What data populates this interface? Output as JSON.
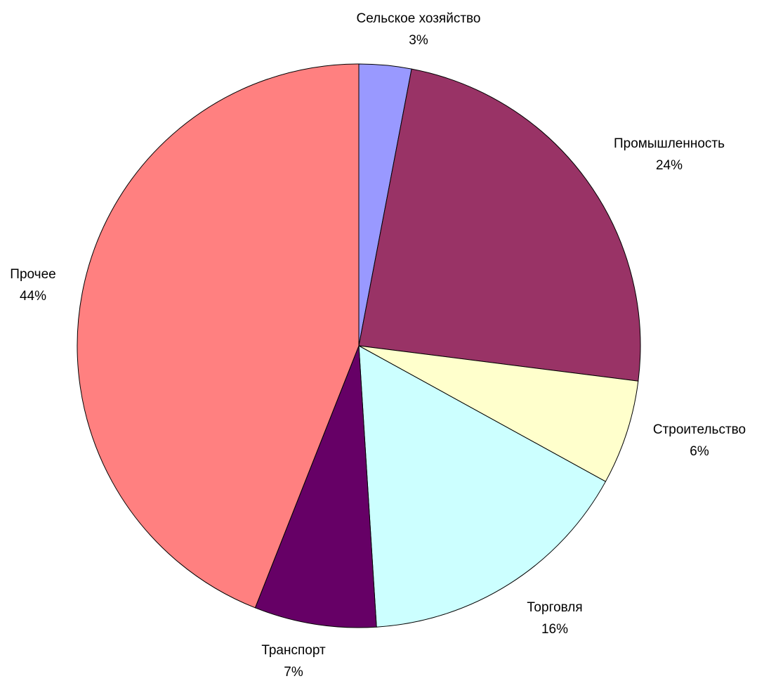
{
  "chart_data": {
    "type": "pie",
    "start_angle_deg": 0,
    "direction": "clockwise",
    "slices": [
      {
        "label": "Сельское хозяйство",
        "value": 3,
        "percent_label": "3%",
        "color": "#9999ff"
      },
      {
        "label": "Промышленность",
        "value": 24,
        "percent_label": "24%",
        "color": "#993366"
      },
      {
        "label": "Строительство",
        "value": 6,
        "percent_label": "6%",
        "color": "#ffffcc"
      },
      {
        "label": "Торговля",
        "value": 16,
        "percent_label": "16%",
        "color": "#ccffff"
      },
      {
        "label": "Транспорт",
        "value": 7,
        "percent_label": "7%",
        "color": "#660066"
      },
      {
        "label": "Прочее",
        "value": 44,
        "percent_label": "44%",
        "color": "#ff8080"
      }
    ]
  }
}
